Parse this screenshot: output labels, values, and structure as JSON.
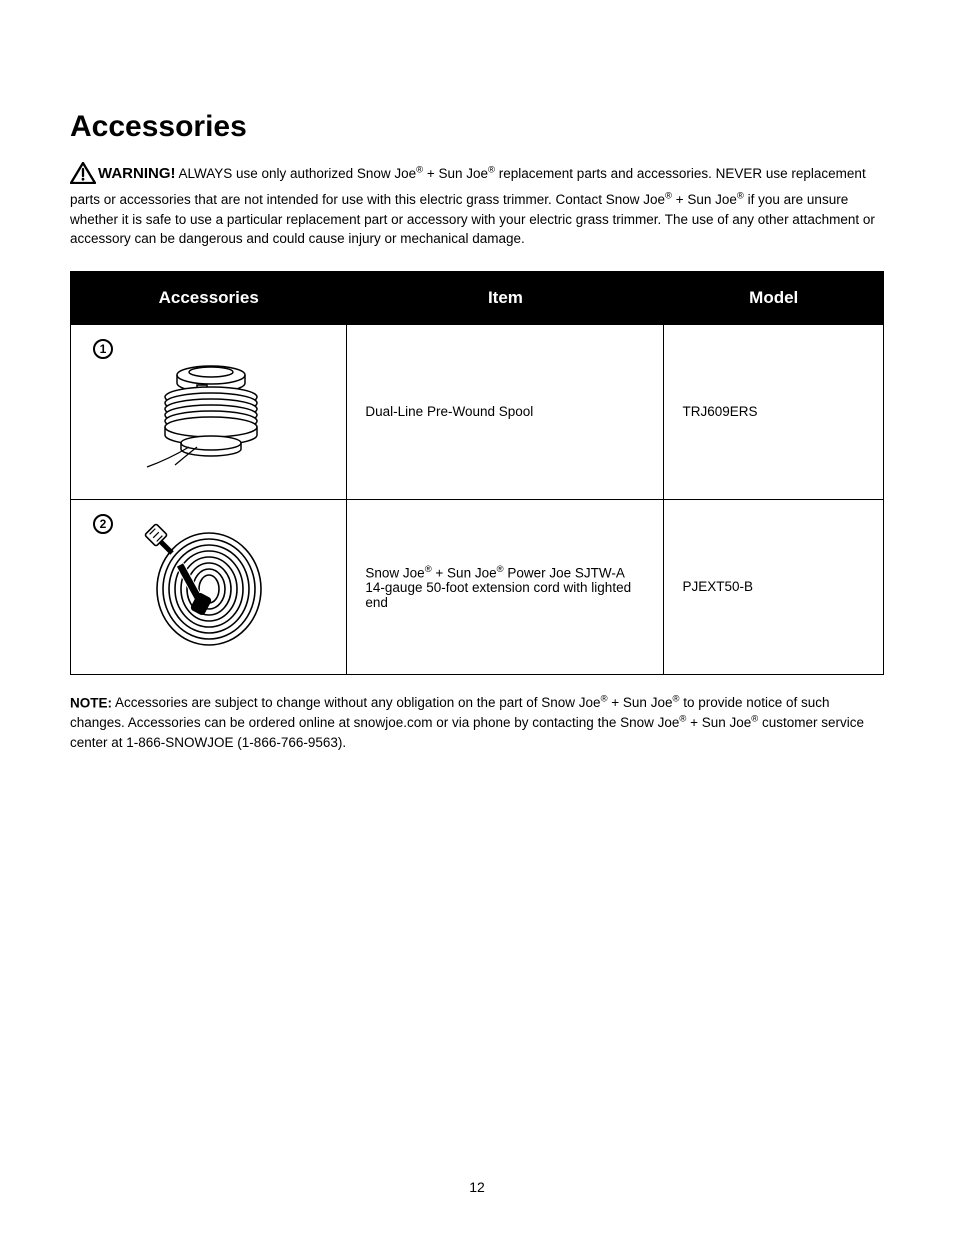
{
  "heading": "Accessories",
  "warning": {
    "label": "WARNING!",
    "text_html": " ALWAYS use only authorized Snow Joe<sup>®</sup> + Sun Joe<sup>®</sup> replacement parts and accessories. NEVER use replacement parts or accessories that are not intended for use with this electric grass trimmer. Contact Snow Joe<sup>®</sup> + Sun Joe<sup>®</sup> if you are unsure whether it is safe to use a particular replacement part or accessory with your electric grass trimmer. The use of any other attachment or accessory can be dangerous and could cause injury or mechanical damage."
  },
  "table": {
    "headers": {
      "col1": "Accessories",
      "col2": "Item",
      "col3": "Model"
    },
    "header_bg": "#000000",
    "header_fg": "#ffffff",
    "border_color": "#000000",
    "rows": [
      {
        "num": "1",
        "item": "Dual-Line Pre-Wound Spool",
        "model": "TRJ609ERS",
        "illustration": "spool"
      },
      {
        "num": "2",
        "item_html": "Snow Joe<sup>®</sup> + Sun Joe<sup>®</sup> Power Joe SJTW-A 14-gauge 50-foot extension cord with lighted end",
        "model": "PJEXT50-B",
        "illustration": "cord"
      }
    ]
  },
  "note": {
    "label": "NOTE:",
    "text_html": " Accessories are subject to change without any obligation on the part of Snow Joe<sup>®</sup> + Sun Joe<sup>®</sup> to provide notice of such changes. Accessories can be ordered online at snowjoe.com or via phone by contacting the Snow Joe<sup>®</sup> + Sun Joe<sup>®</sup> customer service center at 1-866-SNOWJOE (1-866-766-9563)."
  },
  "page_number": "12",
  "styling": {
    "page_bg": "#ffffff",
    "text_color": "#000000",
    "heading_fontsize": 30,
    "body_fontsize": 13.5,
    "th_fontsize": 17,
    "font_family": "Arial, Helvetica, sans-serif"
  }
}
